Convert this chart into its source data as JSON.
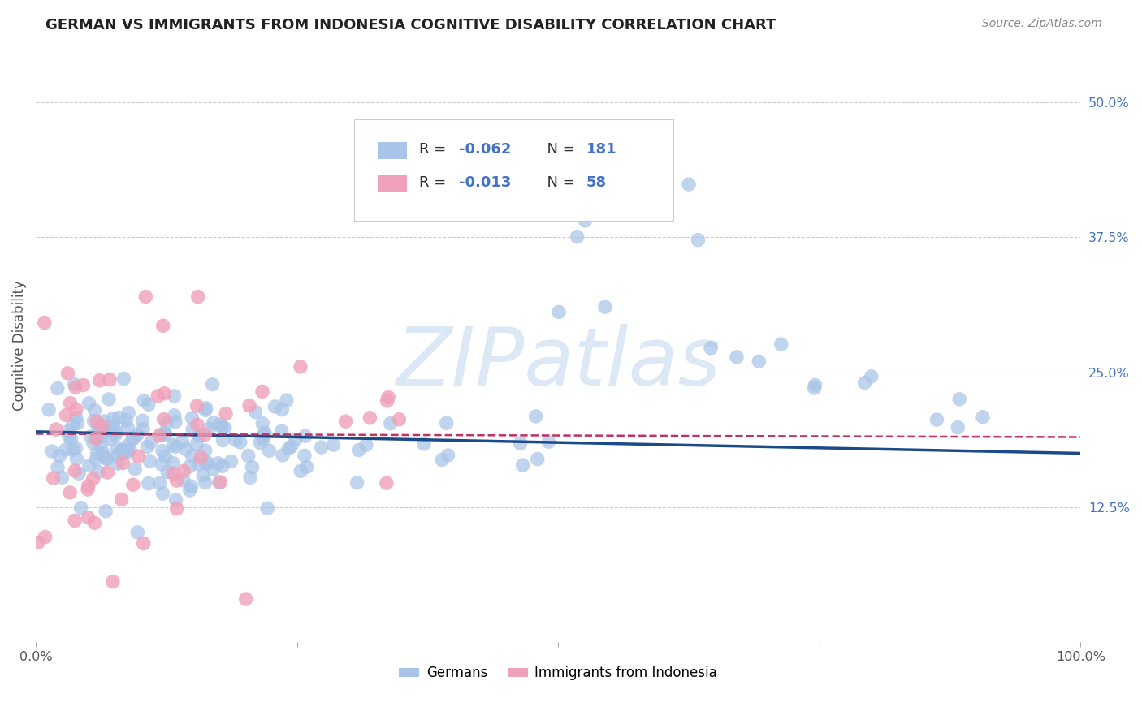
{
  "title": "GERMAN VS IMMIGRANTS FROM INDONESIA COGNITIVE DISABILITY CORRELATION CHART",
  "source_text": "Source: ZipAtlas.com",
  "ylabel": "Cognitive Disability",
  "xlim": [
    0.0,
    1.0
  ],
  "ylim": [
    0.0,
    0.55
  ],
  "german_R": -0.062,
  "german_N": 181,
  "indonesia_R": -0.013,
  "indonesia_N": 58,
  "german_color": "#a8c4e8",
  "german_line_color": "#1a4a8a",
  "indonesia_color": "#f0a0b8",
  "indonesia_line_color": "#c03060",
  "watermark_text": "ZIPatlas",
  "watermark_color": "#dce8f5",
  "background_color": "#ffffff",
  "grid_color": "#c0c0c0",
  "right_tick_color": "#4472c4",
  "legend_text_color": "#4472c4",
  "title_color": "#222222",
  "ylabel_color": "#555555",
  "source_color": "#888888",
  "xtick_color": "#555555",
  "legend_border_color": "#cccccc"
}
